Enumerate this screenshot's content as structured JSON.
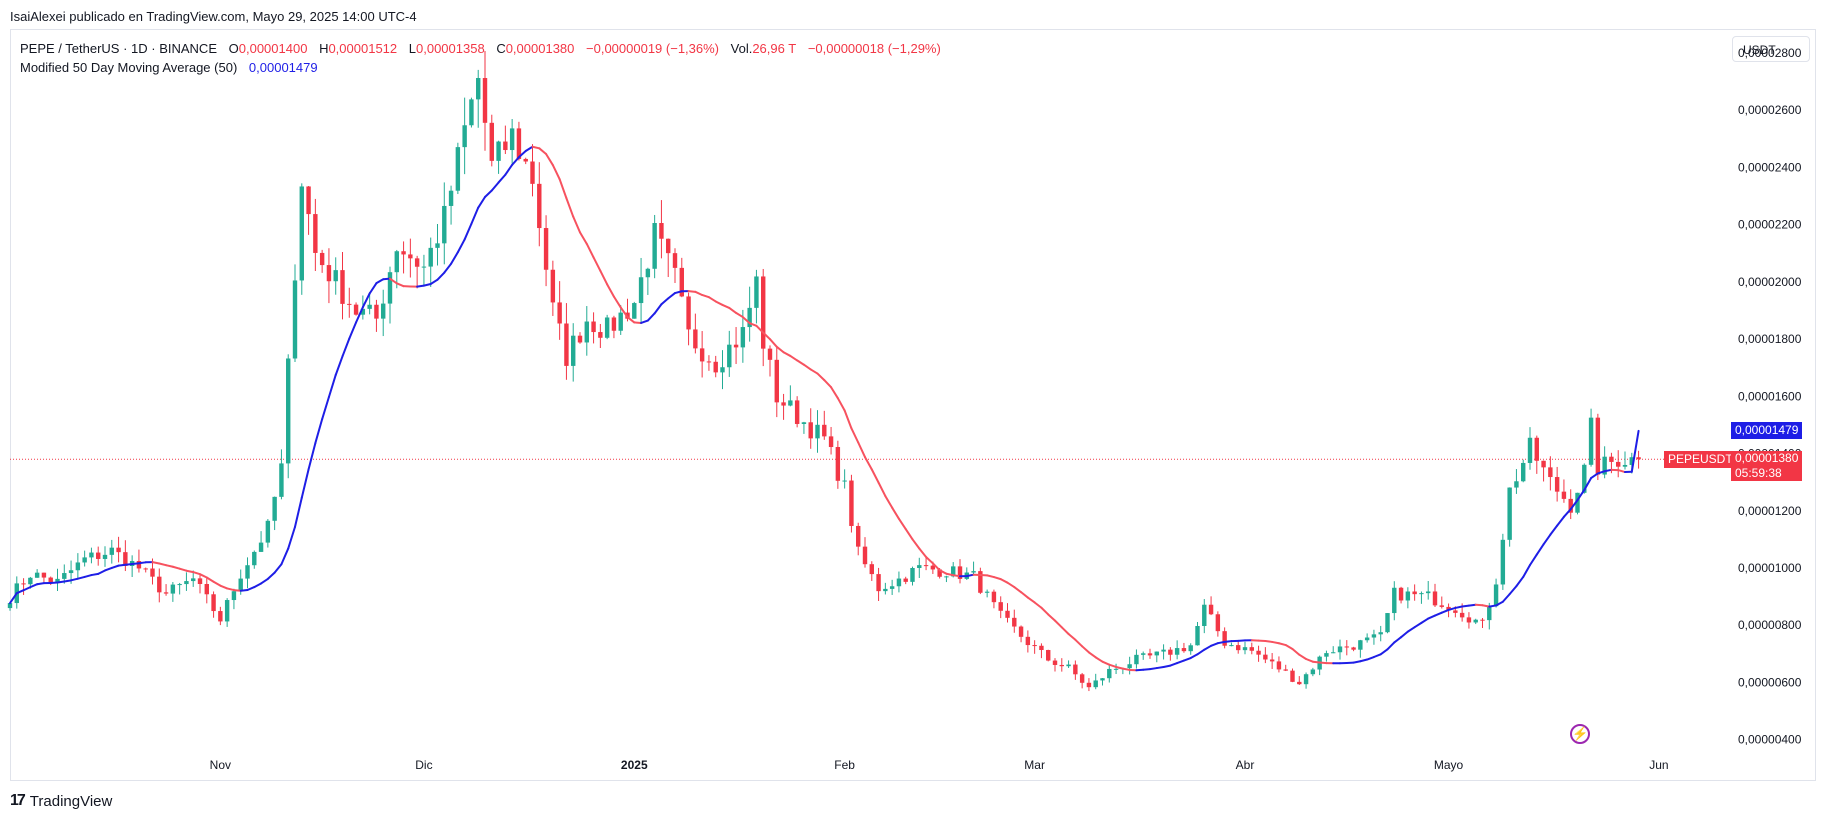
{
  "header": {
    "publisher_line": "IsaiAlexei publicado en TradingView.com, Mayo 29, 2025 14:00 UTC-4"
  },
  "legend": {
    "symbol": "PEPE / TetherUS · 1D · BINANCE",
    "o_key": "O",
    "o_val": "0,00001400",
    "h_key": "H",
    "h_val": "0,00001512",
    "l_key": "L",
    "l_val": "0,00001358",
    "c_key": "C",
    "c_val": "0,00001380",
    "change": "−0,00000019 (−1,36%)",
    "vol_key": "Vol.",
    "vol_val": "26,96 T",
    "vol_change": "−0,00000018 (−1,29%)",
    "ma_label": "Modified 50 Day Moving Average (50)",
    "ma_val": "0,00001479"
  },
  "currency_button": "USDT",
  "price_labels": {
    "ma": "0,00001479",
    "symbol_tag": "PEPEUSDT",
    "close": "0,00001380",
    "countdown": "05:59:38"
  },
  "footer": {
    "brand": "TradingView",
    "logo": "17"
  },
  "colors": {
    "up": "#22ab94",
    "down": "#f23645",
    "ma_up": "#1e1ee6",
    "ma_down": "#f7525f"
  },
  "chart_data": {
    "type": "candlestick",
    "symbol": "PEPE / TetherUS",
    "interval": "1D",
    "y_axis_ticks": [
      "0,00002800",
      "0,00002600",
      "0,00002400",
      "0,00002200",
      "0,00002000",
      "0,00001800",
      "0,00001600",
      "0,00001400",
      "0,00001200",
      "0,00001000",
      "0,00000800",
      "0,00000600",
      "0,00000400"
    ],
    "x_axis_ticks": [
      {
        "label": "Nov",
        "bold": false
      },
      {
        "label": "Dic",
        "bold": false
      },
      {
        "label": "2025",
        "bold": true
      },
      {
        "label": "Feb",
        "bold": false
      },
      {
        "label": "Mar",
        "bold": false
      },
      {
        "label": "Abr",
        "bold": false
      },
      {
        "label": "Mayo",
        "bold": false
      },
      {
        "label": "Jun",
        "bold": false
      }
    ],
    "ylim": [
      3.5e-06,
      2.88e-05
    ],
    "last_close": 1.38e-05,
    "ma_last": 1.479e-05,
    "anchors": [
      [
        "2024-10-01",
        9.0
      ],
      [
        "2024-10-04",
        9.8
      ],
      [
        "2024-10-08",
        9.5
      ],
      [
        "2024-10-12",
        10.3
      ],
      [
        "2024-10-16",
        10.6
      ],
      [
        "2024-10-20",
        10.0
      ],
      [
        "2024-10-24",
        9.1
      ],
      [
        "2024-10-28",
        9.6
      ],
      [
        "2024-11-01",
        8.2
      ],
      [
        "2024-11-04",
        9.8
      ],
      [
        "2024-11-08",
        11.4
      ],
      [
        "2024-11-10",
        13.5
      ],
      [
        "2024-11-12",
        20.5
      ],
      [
        "2024-11-13",
        23.6
      ],
      [
        "2024-11-15",
        21.0
      ],
      [
        "2024-11-18",
        20.0
      ],
      [
        "2024-11-21",
        19.0
      ],
      [
        "2024-11-24",
        18.7
      ],
      [
        "2024-11-27",
        21.3
      ],
      [
        "2024-12-01",
        20.5
      ],
      [
        "2024-12-04",
        22.2
      ],
      [
        "2024-12-07",
        25.3
      ],
      [
        "2024-12-09",
        27.1
      ],
      [
        "2024-12-11",
        24.0
      ],
      [
        "2024-12-14",
        25.1
      ],
      [
        "2024-12-17",
        23.6
      ],
      [
        "2024-12-20",
        19.0
      ],
      [
        "2024-12-22",
        17.4
      ],
      [
        "2024-12-25",
        18.7
      ],
      [
        "2024-12-28",
        18.3
      ],
      [
        "2025-01-01",
        19.3
      ],
      [
        "2025-01-04",
        21.6
      ],
      [
        "2025-01-07",
        20.1
      ],
      [
        "2025-01-09",
        18.1
      ],
      [
        "2025-01-13",
        17.2
      ],
      [
        "2025-01-17",
        18.2
      ],
      [
        "2025-01-19",
        20.0
      ],
      [
        "2025-01-20",
        17.9
      ],
      [
        "2025-01-22",
        16.0
      ],
      [
        "2025-01-26",
        15.1
      ],
      [
        "2025-01-29",
        14.5
      ],
      [
        "2025-02-01",
        12.8
      ],
      [
        "2025-02-03",
        10.5
      ],
      [
        "2025-02-06",
        9.3
      ],
      [
        "2025-02-09",
        9.6
      ],
      [
        "2025-02-12",
        10.0
      ],
      [
        "2025-02-16",
        9.9
      ],
      [
        "2025-02-20",
        9.7
      ],
      [
        "2025-02-24",
        8.3
      ],
      [
        "2025-02-28",
        7.4
      ],
      [
        "2025-03-03",
        6.8
      ],
      [
        "2025-03-06",
        6.5
      ],
      [
        "2025-03-09",
        5.8
      ],
      [
        "2025-03-12",
        6.4
      ],
      [
        "2025-03-16",
        6.8
      ],
      [
        "2025-03-20",
        7.0
      ],
      [
        "2025-03-24",
        7.3
      ],
      [
        "2025-03-26",
        8.6
      ],
      [
        "2025-03-29",
        7.4
      ],
      [
        "2025-04-02",
        7.1
      ],
      [
        "2025-04-06",
        6.5
      ],
      [
        "2025-04-09",
        6.0
      ],
      [
        "2025-04-13",
        7.1
      ],
      [
        "2025-04-17",
        7.3
      ],
      [
        "2025-04-21",
        7.6
      ],
      [
        "2025-04-23",
        9.1
      ],
      [
        "2025-04-28",
        9.0
      ],
      [
        "2025-05-02",
        8.6
      ],
      [
        "2025-05-06",
        8.0
      ],
      [
        "2025-05-08",
        9.6
      ],
      [
        "2025-05-10",
        12.7
      ],
      [
        "2025-05-13",
        14.2
      ],
      [
        "2025-05-16",
        13.0
      ],
      [
        "2025-05-19",
        12.2
      ],
      [
        "2025-05-21",
        13.4
      ],
      [
        "2025-05-22",
        14.9
      ],
      [
        "2025-05-23",
        13.5
      ],
      [
        "2025-05-26",
        13.8
      ],
      [
        "2025-05-29",
        13.8
      ]
    ],
    "anchor_unit": "x 0,000001 USDT"
  }
}
